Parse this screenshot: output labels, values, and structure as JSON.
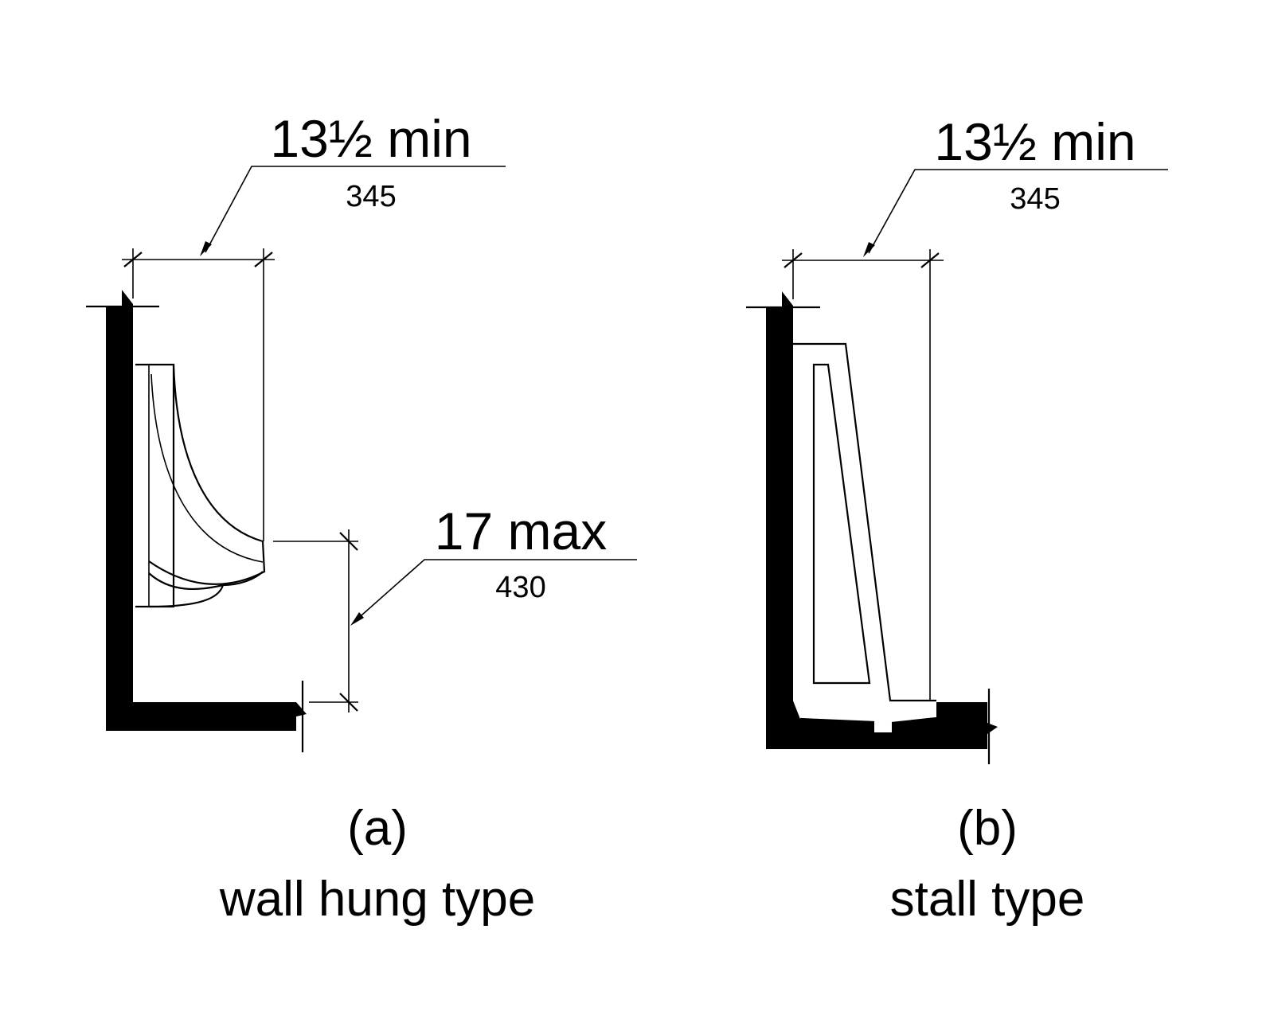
{
  "diagram_a": {
    "width_dim": {
      "imperial": "13½ min",
      "metric": "345"
    },
    "height_dim": {
      "imperial": "17 max",
      "metric": "430"
    },
    "caption_letter": "(a)",
    "caption_text": "wall hung type"
  },
  "diagram_b": {
    "width_dim": {
      "imperial": "13½ min",
      "metric": "345"
    },
    "caption_letter": "(b)",
    "caption_text": "stall type"
  },
  "colors": {
    "ink": "#000000",
    "background": "#ffffff"
  }
}
